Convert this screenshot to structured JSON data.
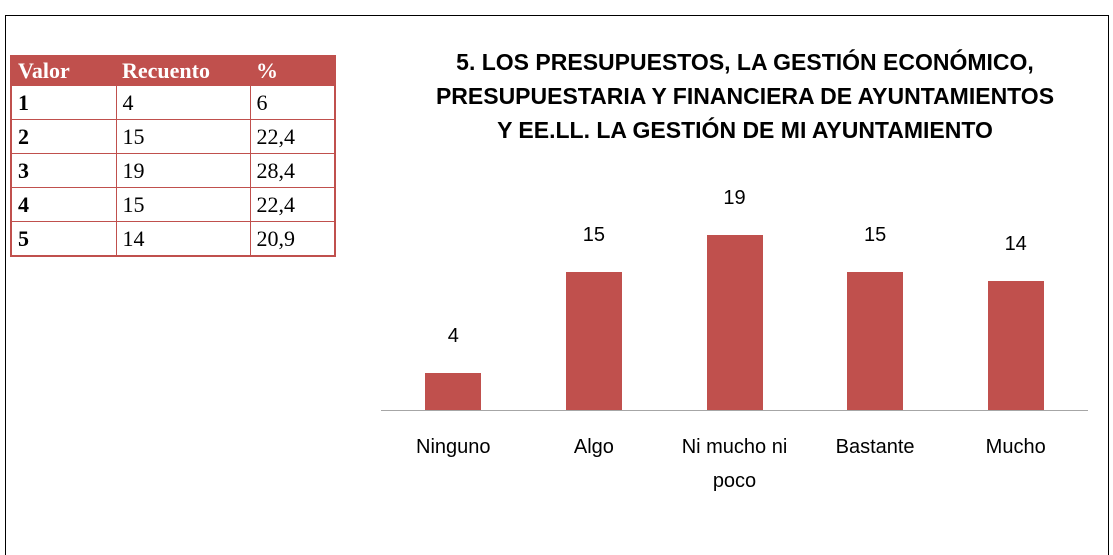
{
  "table": {
    "header": [
      "Valor",
      "Recuento",
      "%"
    ],
    "rows": [
      [
        "1",
        "4",
        "6"
      ],
      [
        "2",
        "15",
        "22,4"
      ],
      [
        "3",
        "19",
        "28,4"
      ],
      [
        "4",
        "15",
        "22,4"
      ],
      [
        "5",
        "14",
        "20,9"
      ]
    ]
  },
  "chart_data": {
    "type": "bar",
    "title": "5. LOS PRESUPUESTOS, LA GESTIÓN ECONÓMICO, PRESUPUESTARIA Y FINANCIERA DE AYUNTAMIENTOS Y EE.LL. LA GESTIÓN DE MI AYUNTAMIENTO",
    "categories": [
      "Ninguno",
      "Algo",
      "Ni mucho ni poco",
      "Bastante",
      "Mucho"
    ],
    "values": [
      4,
      15,
      19,
      15,
      14
    ],
    "color": "#c0504d"
  }
}
